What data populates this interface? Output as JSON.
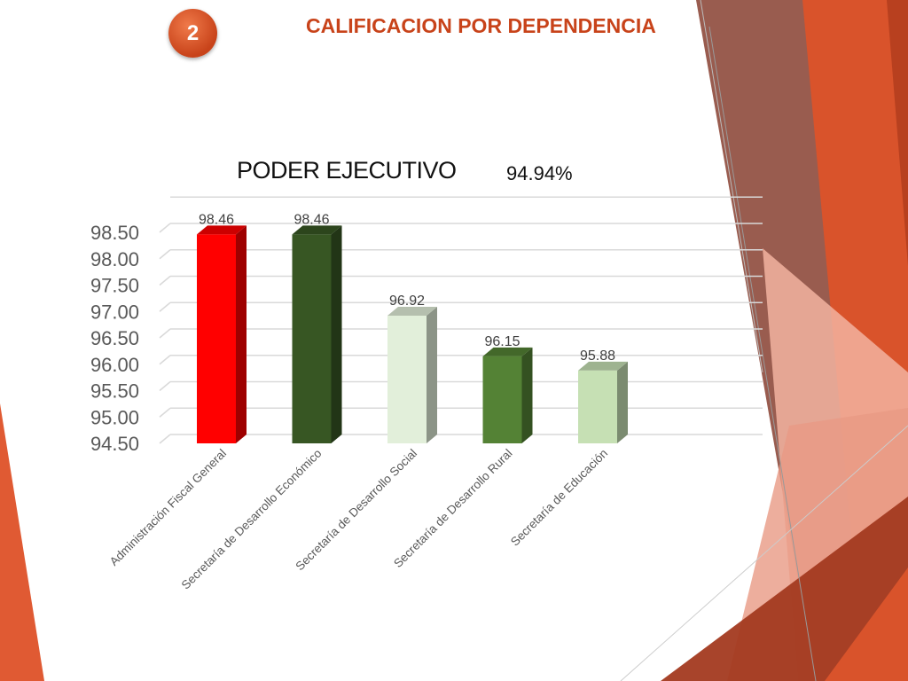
{
  "slide": {
    "number": "2",
    "title": "CALIFICACION POR DEPENDENCIA"
  },
  "colors": {
    "accent": "#c8431a",
    "deco_dark": "#a33a20",
    "deco_brown": "#8e4a3c"
  },
  "chart_data": {
    "type": "bar",
    "title": "PODER EJECUTIVO",
    "subtitle": "94.94%",
    "categories": [
      "Administración Fiscal General",
      "Secretaría de Desarrollo Económico",
      "Secretaría de Desarrollo Social",
      "Secretaría de Desarrollo Rural",
      "Secretaría de Educación"
    ],
    "values": [
      98.46,
      98.46,
      96.92,
      96.15,
      95.88
    ],
    "data_labels": [
      "98.46",
      "98.46",
      "96.92",
      "96.15",
      "95.88"
    ],
    "bar_colors": [
      "#ff0000",
      "#375623",
      "#e2efda",
      "#548235",
      "#c6e0b4"
    ],
    "ylim": [
      94.5,
      98.5
    ],
    "yticks": [
      "98.50",
      "98.00",
      "97.50",
      "97.00",
      "96.50",
      "96.00",
      "95.50",
      "95.00",
      "94.50"
    ],
    "grid": true,
    "style": "3d-columns"
  }
}
